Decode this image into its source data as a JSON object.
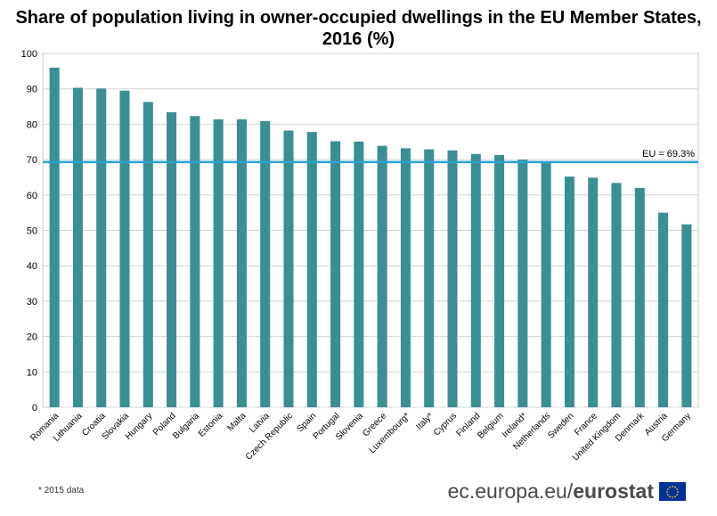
{
  "chart_data": {
    "type": "bar",
    "title_line1": "Share of population living in owner-occupied dwellings in the EU Member States,",
    "title_line2": "2016 (%)",
    "xlabel": "",
    "ylabel": "",
    "ylim": [
      0,
      100
    ],
    "yticks": [
      0,
      10,
      20,
      30,
      40,
      50,
      60,
      70,
      80,
      90,
      100
    ],
    "grid": true,
    "categories": [
      "Romania",
      "Lithuania",
      "Croatia",
      "Slovakia",
      "Hungary",
      "Poland",
      "Bulgaria",
      "Estonia",
      "Malta",
      "Latvia",
      "Czech Republic",
      "Spain",
      "Portugal",
      "Slovenia",
      "Greece",
      "Luxembourg*",
      "Italy*",
      "Cyprus",
      "Finland",
      "Belgium",
      "Ireland*",
      "Netherlands",
      "Sweden",
      "France",
      "United Kingdom",
      "Denmark",
      "Austria",
      "Germany"
    ],
    "values": [
      96.0,
      90.3,
      90.1,
      89.5,
      86.3,
      83.4,
      82.3,
      81.4,
      81.4,
      80.9,
      78.2,
      77.8,
      75.2,
      75.1,
      73.9,
      73.2,
      72.9,
      72.6,
      71.6,
      71.3,
      70.0,
      69.0,
      65.2,
      64.9,
      63.4,
      62.0,
      55.0,
      51.7
    ],
    "reference_line": {
      "value": 69.3,
      "label": "EU = 69.3%"
    },
    "bar_color": "#3a8f92",
    "reference_color": "#2ea3d2"
  },
  "footnote": "* 2015 data",
  "brand": {
    "domain": "ec.europa.eu/",
    "name": "eurostat"
  }
}
